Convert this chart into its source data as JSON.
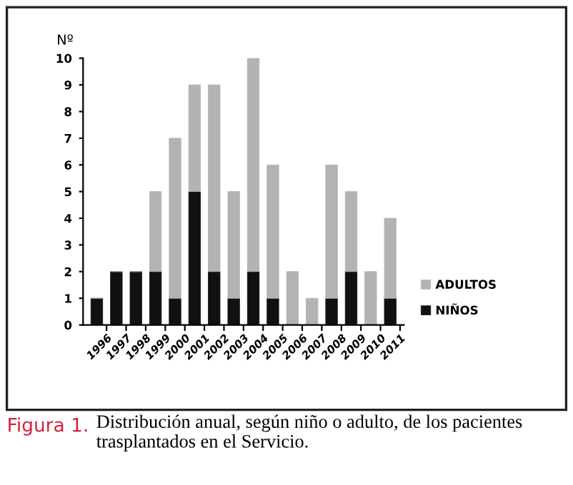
{
  "chart_data": {
    "type": "bar",
    "stacked": true,
    "ylabel": "Nº",
    "categories": [
      "1996",
      "1997",
      "1998",
      "1999",
      "2000",
      "2001",
      "2002",
      "2003",
      "2004",
      "2005",
      "2006",
      "2007",
      "2008",
      "2009",
      "2010",
      "2011"
    ],
    "series": [
      {
        "name": "NIÑOS",
        "color": "#111111",
        "values": [
          1,
          2,
          2,
          2,
          1,
          5,
          2,
          1,
          2,
          1,
          0,
          0,
          1,
          2,
          0,
          1
        ]
      },
      {
        "name": "ADULTOS",
        "color": "#b3b3b3",
        "values": [
          0,
          0,
          0,
          3,
          6,
          4,
          7,
          4,
          8,
          5,
          2,
          1,
          5,
          3,
          2,
          3
        ]
      }
    ],
    "ylim": [
      0,
      10
    ],
    "yticks": [
      0,
      1,
      2,
      3,
      4,
      5,
      6,
      7,
      8,
      9,
      10
    ],
    "grid": false,
    "legend": "right",
    "annotations": [
      "Figura 1.",
      "Distribución anual, según niño o adulto, de los pacientes trasplantados en el Servicio."
    ]
  }
}
